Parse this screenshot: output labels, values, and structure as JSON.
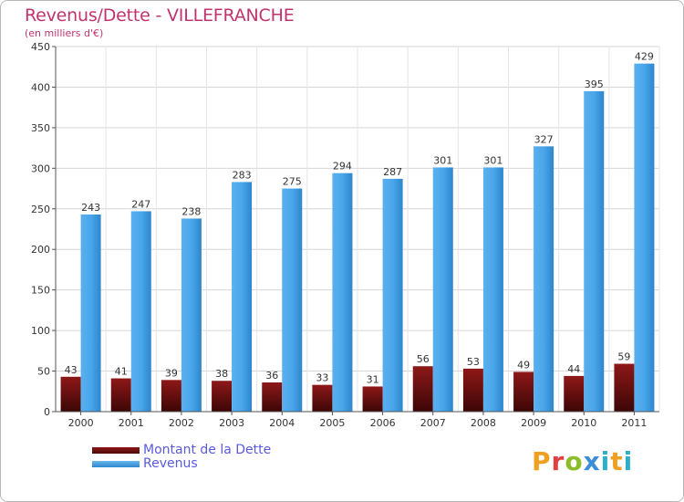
{
  "header": {
    "title": "Revenus/Dette - VILLEFRANCHE",
    "subtitle": "(en milliers d'€)"
  },
  "logo": {
    "text": "Proxiti"
  },
  "colors": {
    "dette": "#7a1010",
    "revenus": "#3d9be3",
    "accent": "#c0336f",
    "legend_text": "#5a5adc"
  },
  "chart_data": {
    "type": "bar",
    "title": "Revenus/Dette - VILLEFRANCHE",
    "subtitle": "(en milliers d'€)",
    "xlabel": "",
    "ylabel": "",
    "ylim": [
      0,
      450
    ],
    "yticks": [
      0,
      50,
      100,
      150,
      200,
      250,
      300,
      350,
      400,
      450
    ],
    "grid": true,
    "legend_position": "bottom-left",
    "categories": [
      "2000",
      "2001",
      "2002",
      "2003",
      "2004",
      "2005",
      "2006",
      "2007",
      "2008",
      "2009",
      "2010",
      "2011"
    ],
    "series": [
      {
        "name": "Montant de la Dette",
        "color": "#7a1010",
        "values": [
          43,
          41,
          39,
          38,
          36,
          33,
          31,
          56,
          53,
          49,
          44,
          59
        ]
      },
      {
        "name": "Revenus",
        "color": "#3d9be3",
        "values": [
          243,
          247,
          238,
          283,
          275,
          294,
          287,
          301,
          301,
          327,
          395,
          429
        ]
      }
    ]
  }
}
